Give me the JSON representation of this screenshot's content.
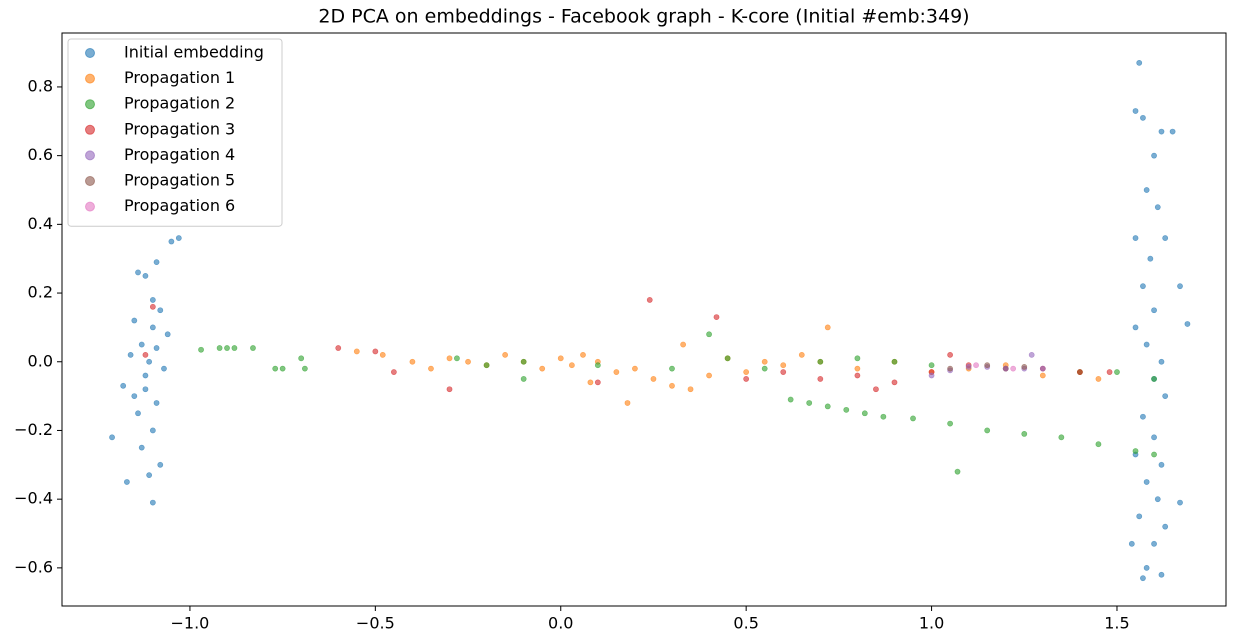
{
  "chart_data": {
    "type": "scatter",
    "title": "2D PCA on embeddings - Facebook graph - K-core (Initial #emb:349)",
    "xlim": [
      -1.345,
      1.794
    ],
    "ylim": [
      -0.711,
      0.957
    ],
    "xticks": [
      {
        "value": -1.0,
        "label": "−1.0"
      },
      {
        "value": -0.5,
        "label": "−0.5"
      },
      {
        "value": 0,
        "label": "0.0"
      },
      0.5,
      {
        "value": 1.0,
        "label": "1.0"
      },
      1.5
    ],
    "yticks": [
      {
        "value": -0.6,
        "label": "−0.6"
      },
      {
        "value": -0.4,
        "label": "−0.4"
      },
      {
        "value": -0.2,
        "label": "−0.2"
      },
      {
        "value": 0,
        "label": "0.0"
      },
      0.2,
      0.4,
      0.6,
      0.8
    ],
    "legend": "upper left",
    "series": [
      {
        "name": "Initial embedding",
        "color": "#1f77b4",
        "x": [
          -1.21,
          -1.17,
          -1.1,
          -1.05,
          -1.03,
          -1.14,
          -1.12,
          -1.09,
          -1.1,
          -1.15,
          -1.08,
          -1.13,
          -1.11,
          -1.16,
          -1.07,
          -1.12,
          -1.09,
          -1.14,
          -1.1,
          -1.13,
          -1.08,
          -1.11,
          -1.18,
          -1.06,
          -1.1,
          -1.12,
          -1.15,
          -1.09,
          1.56,
          1.55,
          1.57,
          1.62,
          1.65,
          1.6,
          1.58,
          1.61,
          1.63,
          1.55,
          1.59,
          1.57,
          1.67,
          1.6,
          1.55,
          1.69,
          1.58,
          1.62,
          1.6,
          1.63,
          1.57,
          1.6,
          1.55,
          1.62,
          1.58,
          1.61,
          1.56,
          1.63,
          1.6,
          1.58,
          1.57,
          1.62,
          1.54,
          1.67
        ],
        "y": [
          -0.22,
          -0.35,
          -0.41,
          0.35,
          0.36,
          0.26,
          0.25,
          0.29,
          0.18,
          0.12,
          0.15,
          0.05,
          0.0,
          0.02,
          -0.02,
          -0.08,
          -0.12,
          -0.15,
          -0.2,
          -0.25,
          -0.3,
          -0.33,
          -0.07,
          0.08,
          0.1,
          -0.04,
          -0.1,
          0.04,
          0.87,
          0.73,
          0.71,
          0.67,
          0.67,
          0.6,
          0.5,
          0.45,
          0.36,
          0.36,
          0.3,
          0.22,
          0.22,
          0.15,
          0.1,
          0.11,
          0.05,
          0.0,
          -0.05,
          -0.1,
          -0.16,
          -0.22,
          -0.27,
          -0.3,
          -0.35,
          -0.4,
          -0.45,
          -0.48,
          -0.53,
          -0.6,
          -0.63,
          -0.62,
          -0.53,
          -0.41
        ]
      },
      {
        "name": "Propagation 1",
        "color": "#ff7f0e",
        "x": [
          -0.55,
          -0.48,
          -0.4,
          -0.35,
          -0.3,
          -0.25,
          -0.2,
          -0.15,
          -0.1,
          -0.05,
          0.0,
          0.03,
          0.06,
          0.1,
          0.15,
          0.2,
          0.25,
          0.3,
          0.35,
          0.18,
          0.4,
          0.45,
          0.5,
          0.55,
          0.6,
          0.65,
          0.7,
          0.72,
          0.8,
          0.9,
          1.0,
          1.1,
          1.2,
          1.3,
          1.4,
          1.45,
          0.33,
          0.08
        ],
        "y": [
          0.03,
          0.02,
          0.0,
          -0.02,
          0.01,
          0.0,
          -0.01,
          0.02,
          0.0,
          -0.02,
          0.01,
          -0.01,
          0.02,
          0.0,
          -0.03,
          -0.02,
          -0.05,
          -0.07,
          -0.08,
          -0.12,
          -0.04,
          0.01,
          -0.03,
          0.0,
          -0.01,
          0.02,
          0.0,
          0.1,
          -0.02,
          0.0,
          -0.03,
          -0.02,
          -0.01,
          -0.04,
          -0.03,
          -0.05,
          0.05,
          -0.06
        ]
      },
      {
        "name": "Propagation 2",
        "color": "#2ca02c",
        "x": [
          -0.97,
          -0.92,
          -0.9,
          -0.88,
          -0.83,
          -0.77,
          -0.75,
          -0.7,
          -0.69,
          -0.28,
          -0.2,
          -0.1,
          0.1,
          0.3,
          0.45,
          0.55,
          0.7,
          0.8,
          0.9,
          1.0,
          1.2,
          1.4,
          1.5,
          1.6,
          0.62,
          0.67,
          0.72,
          0.77,
          0.82,
          0.87,
          0.95,
          1.05,
          1.15,
          1.25,
          1.35,
          1.45,
          1.55,
          1.6,
          1.07,
          -0.1,
          0.4
        ],
        "y": [
          0.035,
          0.04,
          0.04,
          0.04,
          0.04,
          -0.02,
          -0.02,
          0.01,
          -0.02,
          0.01,
          -0.01,
          0.0,
          -0.01,
          -0.02,
          0.01,
          -0.02,
          0.0,
          0.01,
          0.0,
          -0.01,
          -0.02,
          -0.03,
          -0.03,
          -0.05,
          -0.11,
          -0.12,
          -0.13,
          -0.14,
          -0.15,
          -0.16,
          -0.165,
          -0.18,
          -0.2,
          -0.21,
          -0.22,
          -0.24,
          -0.26,
          -0.27,
          -0.32,
          -0.05,
          0.08
        ]
      },
      {
        "name": "Propagation 3",
        "color": "#d62728",
        "x": [
          -1.12,
          -1.1,
          -0.6,
          -0.5,
          -0.45,
          -0.3,
          0.24,
          0.42,
          0.1,
          0.5,
          0.6,
          0.7,
          0.8,
          0.9,
          1.0,
          1.1,
          1.2,
          1.3,
          1.4,
          1.48,
          0.85,
          1.05
        ],
        "y": [
          0.02,
          0.16,
          0.04,
          0.03,
          -0.03,
          -0.08,
          0.18,
          0.13,
          -0.06,
          -0.05,
          -0.03,
          -0.05,
          -0.04,
          -0.06,
          -0.03,
          -0.01,
          -0.02,
          -0.02,
          -0.03,
          -0.03,
          -0.08,
          0.02
        ]
      },
      {
        "name": "Propagation 4",
        "color": "#9467bd",
        "x": [
          1.0,
          1.05,
          1.1,
          1.15,
          1.2,
          1.25,
          1.3,
          1.27
        ],
        "y": [
          -0.04,
          -0.025,
          -0.015,
          -0.015,
          -0.02,
          -0.02,
          -0.02,
          0.02
        ]
      },
      {
        "name": "Propagation 5",
        "color": "#8c564b",
        "x": [
          1.05,
          1.15,
          1.25
        ],
        "y": [
          -0.02,
          -0.01,
          -0.015
        ]
      },
      {
        "name": "Propagation 6",
        "color": "#e377c2",
        "x": [
          1.12,
          1.22
        ],
        "y": [
          -0.01,
          -0.02
        ]
      }
    ]
  }
}
